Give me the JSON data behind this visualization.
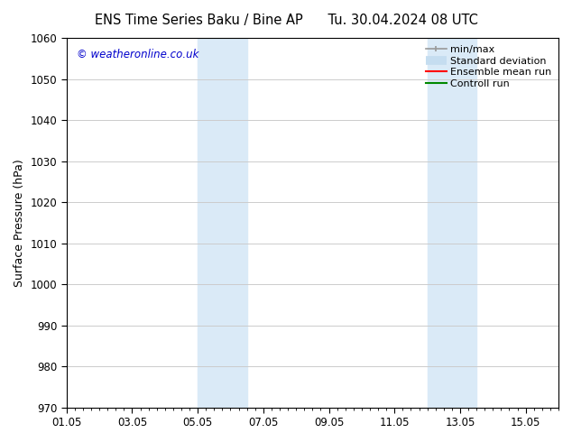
{
  "title_left": "ENS Time Series Baku / Bine AP",
  "title_right": "Tu. 30.04.2024 08 UTC",
  "ylabel": "Surface Pressure (hPa)",
  "ylim": [
    970,
    1060
  ],
  "yticks": [
    970,
    980,
    990,
    1000,
    1010,
    1020,
    1030,
    1040,
    1050,
    1060
  ],
  "xlim": [
    0,
    15
  ],
  "xtick_labels": [
    "01.05",
    "03.05",
    "05.05",
    "07.05",
    "09.05",
    "11.05",
    "13.05",
    "15.05"
  ],
  "xtick_positions": [
    0,
    2,
    4,
    6,
    8,
    10,
    12,
    14
  ],
  "shaded_bands": [
    {
      "x_start": 4.0,
      "x_end": 5.5
    },
    {
      "x_start": 11.0,
      "x_end": 12.5
    }
  ],
  "shaded_color": "#daeaf7",
  "background_color": "#ffffff",
  "watermark_text": "© weatheronline.co.uk",
  "watermark_color": "#0000cc",
  "legend_entries": [
    {
      "label": "min/max",
      "color": "#999999",
      "lw": 1.2
    },
    {
      "label": "Standard deviation",
      "color": "#c5ddf0",
      "lw": 7
    },
    {
      "label": "Ensemble mean run",
      "color": "#ff0000",
      "lw": 1.5
    },
    {
      "label": "Controll run",
      "color": "#008800",
      "lw": 1.5
    }
  ],
  "grid_color": "#cccccc",
  "tick_color": "#000000",
  "font_color": "#000000",
  "title_fontsize": 10.5,
  "label_fontsize": 9,
  "tick_fontsize": 8.5,
  "legend_fontsize": 8
}
